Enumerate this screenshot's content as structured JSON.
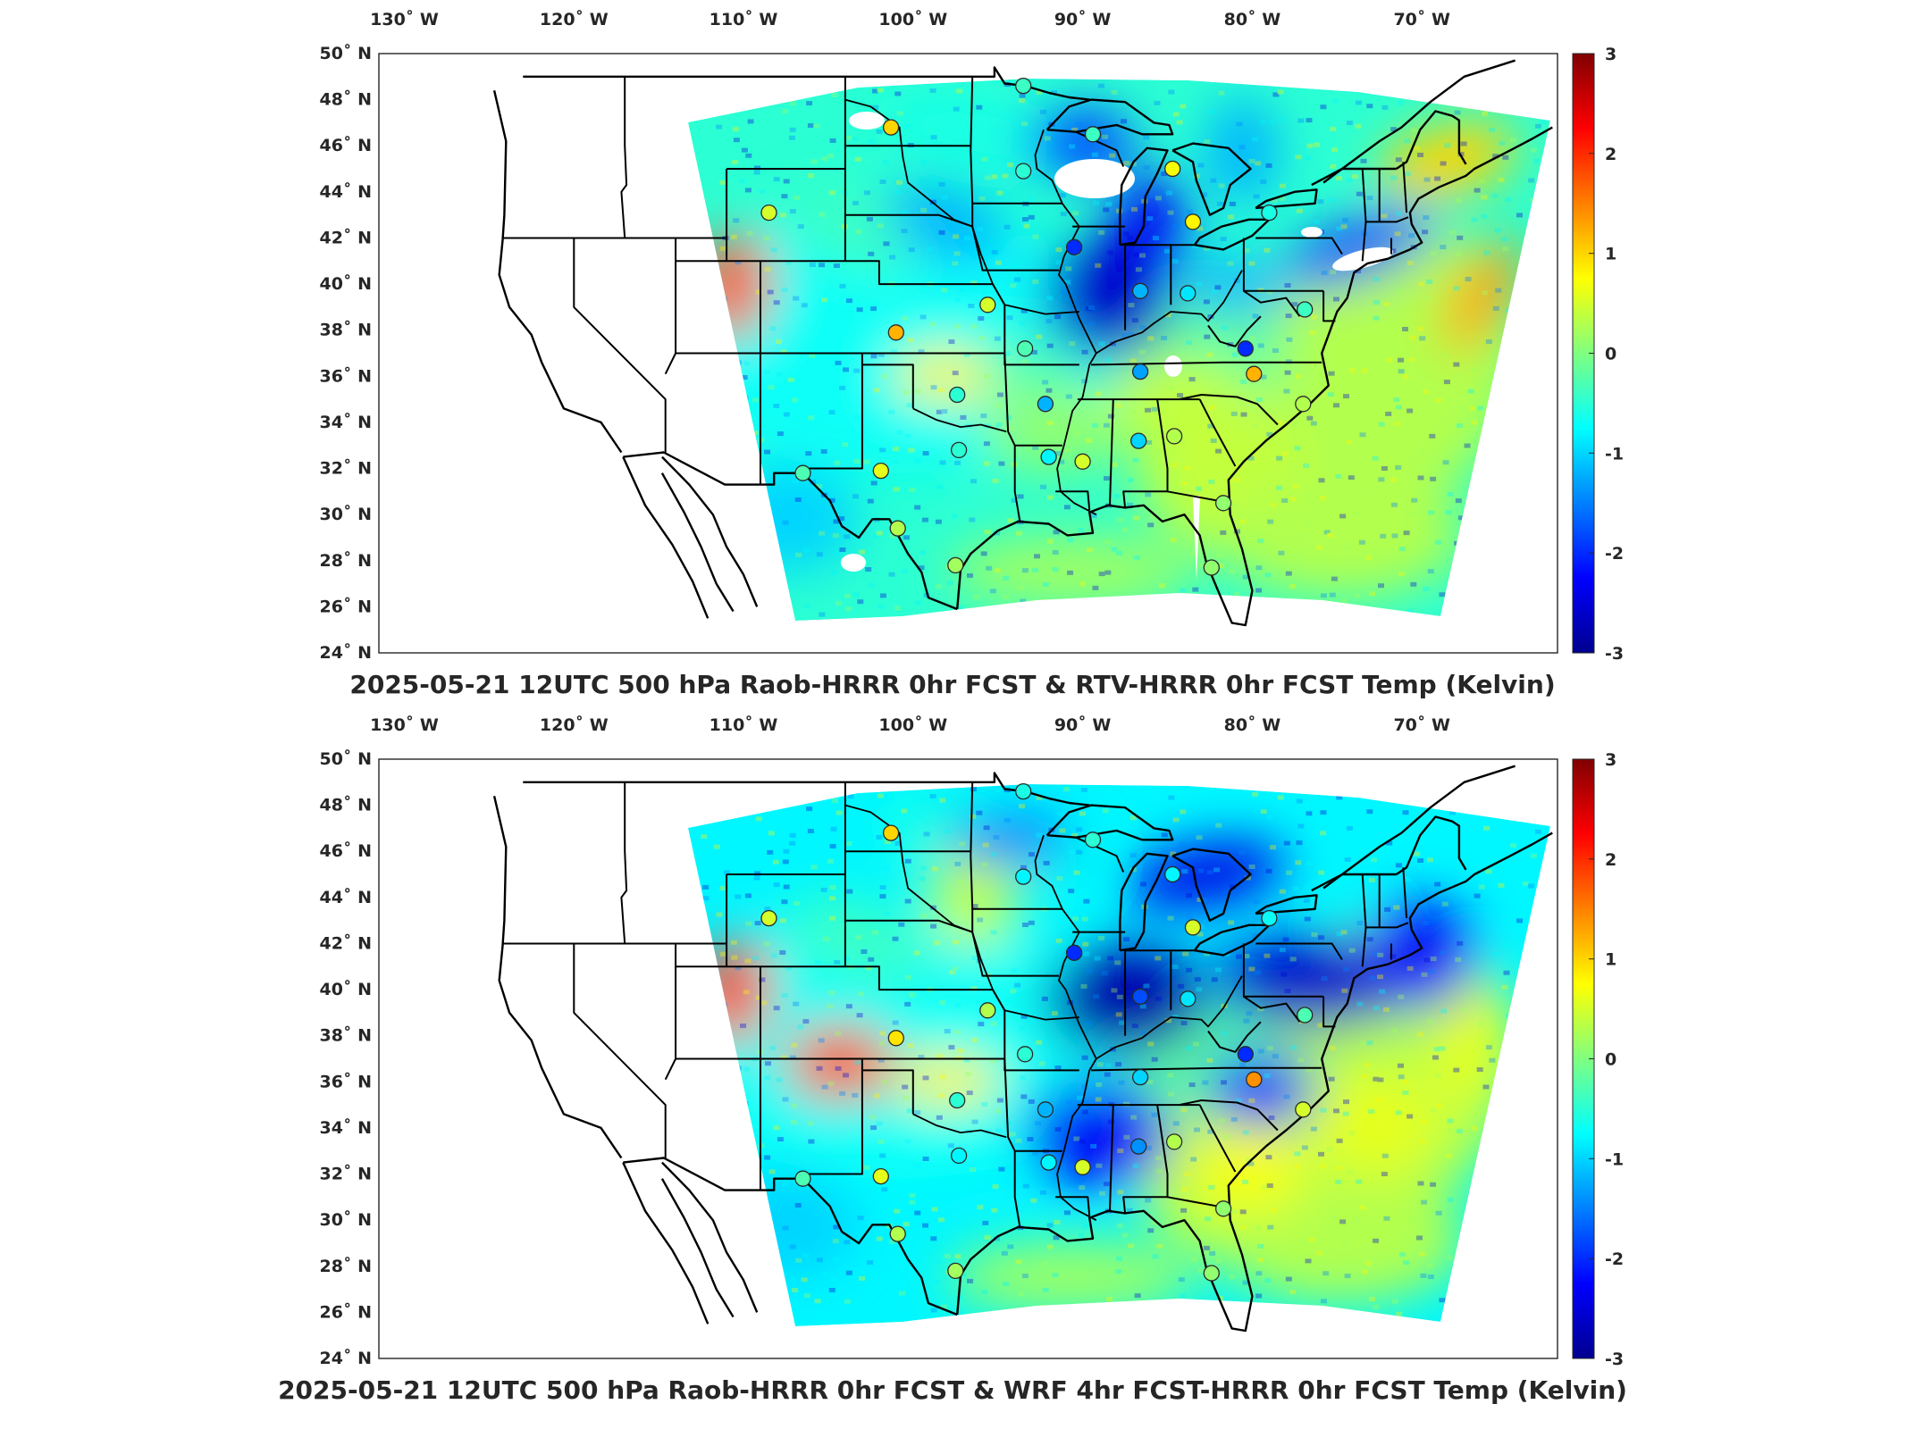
{
  "panels": [
    {
      "title": "2025-05-21 12UTC 500 hPa Raob-HRRR 0hr FCST & RTV-HRRR 0hr FCST Temp (Kelvin)",
      "variant": "rtv"
    },
    {
      "title": "2025-05-21 12UTC 500 hPa Raob-HRRR 0hr FCST & WRF 4hr FCST-HRRR 0hr FCST Temp (Kelvin)",
      "variant": "wrf"
    }
  ],
  "lon_ticks": [
    {
      "value": -130,
      "label": "130˚ W"
    },
    {
      "value": -120,
      "label": "120˚ W"
    },
    {
      "value": -110,
      "label": "110˚ W"
    },
    {
      "value": -100,
      "label": "100˚ W"
    },
    {
      "value": -90,
      "label": "90˚ W"
    },
    {
      "value": -80,
      "label": "80˚ W"
    },
    {
      "value": -70,
      "label": "70˚ W"
    }
  ],
  "lat_ticks": [
    {
      "value": 50,
      "label": "50˚ N"
    },
    {
      "value": 48,
      "label": "48˚ N"
    },
    {
      "value": 46,
      "label": "46˚ N"
    },
    {
      "value": 44,
      "label": "44˚ N"
    },
    {
      "value": 42,
      "label": "42˚ N"
    },
    {
      "value": 40,
      "label": "40˚ N"
    },
    {
      "value": 38,
      "label": "38˚ N"
    },
    {
      "value": 36,
      "label": "36˚ N"
    },
    {
      "value": 34,
      "label": "34˚ N"
    },
    {
      "value": 32,
      "label": "32˚ N"
    },
    {
      "value": 30,
      "label": "30˚ N"
    },
    {
      "value": 28,
      "label": "28˚ N"
    },
    {
      "value": 26,
      "label": "26˚ N"
    },
    {
      "value": 24,
      "label": "24˚ N"
    }
  ],
  "colorbar": {
    "min": -3,
    "max": 3,
    "ticks": [
      "3",
      "2",
      "1",
      "0",
      "-1",
      "-2",
      "-3"
    ],
    "colormap": "jet",
    "colors": [
      "#00008f",
      "#0000ff",
      "#00ffff",
      "#ffff00",
      "#ff0000",
      "#800000"
    ]
  },
  "raob_stations": [
    {
      "lon": -93.5,
      "lat": 48.6,
      "rtv": -0.4,
      "wrf": -0.6
    },
    {
      "lon": -101.3,
      "lat": 46.8,
      "rtv": 1.0,
      "wrf": 1.0
    },
    {
      "lon": -108.5,
      "lat": 43.1,
      "rtv": 0.5,
      "wrf": 0.5
    },
    {
      "lon": -93.5,
      "lat": 44.9,
      "rtv": -0.5,
      "wrf": -0.8
    },
    {
      "lon": -89.4,
      "lat": 46.5,
      "rtv": -0.4,
      "wrf": -0.5
    },
    {
      "lon": -84.7,
      "lat": 45.0,
      "rtv": 0.7,
      "wrf": -0.8
    },
    {
      "lon": -83.5,
      "lat": 42.7,
      "rtv": 0.8,
      "wrf": 0.5
    },
    {
      "lon": -90.5,
      "lat": 41.6,
      "rtv": -2.0,
      "wrf": -2.0
    },
    {
      "lon": -79.0,
      "lat": 43.1,
      "rtv": -0.6,
      "wrf": -0.7
    },
    {
      "lon": -86.6,
      "lat": 39.7,
      "rtv": -1.2,
      "wrf": -1.8
    },
    {
      "lon": -83.8,
      "lat": 39.6,
      "rtv": -0.9,
      "wrf": -0.9
    },
    {
      "lon": -95.6,
      "lat": 39.1,
      "rtv": 0.5,
      "wrf": 0.3
    },
    {
      "lon": -101.0,
      "lat": 37.9,
      "rtv": 1.2,
      "wrf": 0.9
    },
    {
      "lon": -93.4,
      "lat": 37.2,
      "rtv": -0.3,
      "wrf": -0.5
    },
    {
      "lon": -86.6,
      "lat": 36.2,
      "rtv": -1.3,
      "wrf": -1.0
    },
    {
      "lon": -80.4,
      "lat": 37.2,
      "rtv": -2.0,
      "wrf": -2.0
    },
    {
      "lon": -76.9,
      "lat": 38.9,
      "rtv": -0.4,
      "wrf": -0.3
    },
    {
      "lon": -79.9,
      "lat": 36.1,
      "rtv": 1.2,
      "wrf": 1.4
    },
    {
      "lon": -77.0,
      "lat": 34.8,
      "rtv": 0.3,
      "wrf": 0.5
    },
    {
      "lon": -97.4,
      "lat": 35.2,
      "rtv": -0.5,
      "wrf": -0.5
    },
    {
      "lon": -92.2,
      "lat": 34.8,
      "rtv": -1.2,
      "wrf": -1.2
    },
    {
      "lon": -86.7,
      "lat": 33.2,
      "rtv": -1.0,
      "wrf": -1.4
    },
    {
      "lon": -84.6,
      "lat": 33.4,
      "rtv": 0.3,
      "wrf": 0.3
    },
    {
      "lon": -90.0,
      "lat": 32.3,
      "rtv": 0.5,
      "wrf": 0.5
    },
    {
      "lon": -92.0,
      "lat": 32.5,
      "rtv": -0.8,
      "wrf": -0.8
    },
    {
      "lon": -97.3,
      "lat": 32.8,
      "rtv": -0.5,
      "wrf": -0.8
    },
    {
      "lon": -101.9,
      "lat": 31.9,
      "rtv": 0.6,
      "wrf": 0.6
    },
    {
      "lon": -106.5,
      "lat": 31.8,
      "rtv": -0.3,
      "wrf": -0.3
    },
    {
      "lon": -100.9,
      "lat": 29.4,
      "rtv": 0.3,
      "wrf": 0.3
    },
    {
      "lon": -97.5,
      "lat": 27.8,
      "rtv": 0.2,
      "wrf": 0.2
    },
    {
      "lon": -81.7,
      "lat": 30.5,
      "rtv": 0.1,
      "wrf": 0.1
    },
    {
      "lon": -82.4,
      "lat": 27.7,
      "rtv": 0.1,
      "wrf": 0.1
    }
  ]
}
